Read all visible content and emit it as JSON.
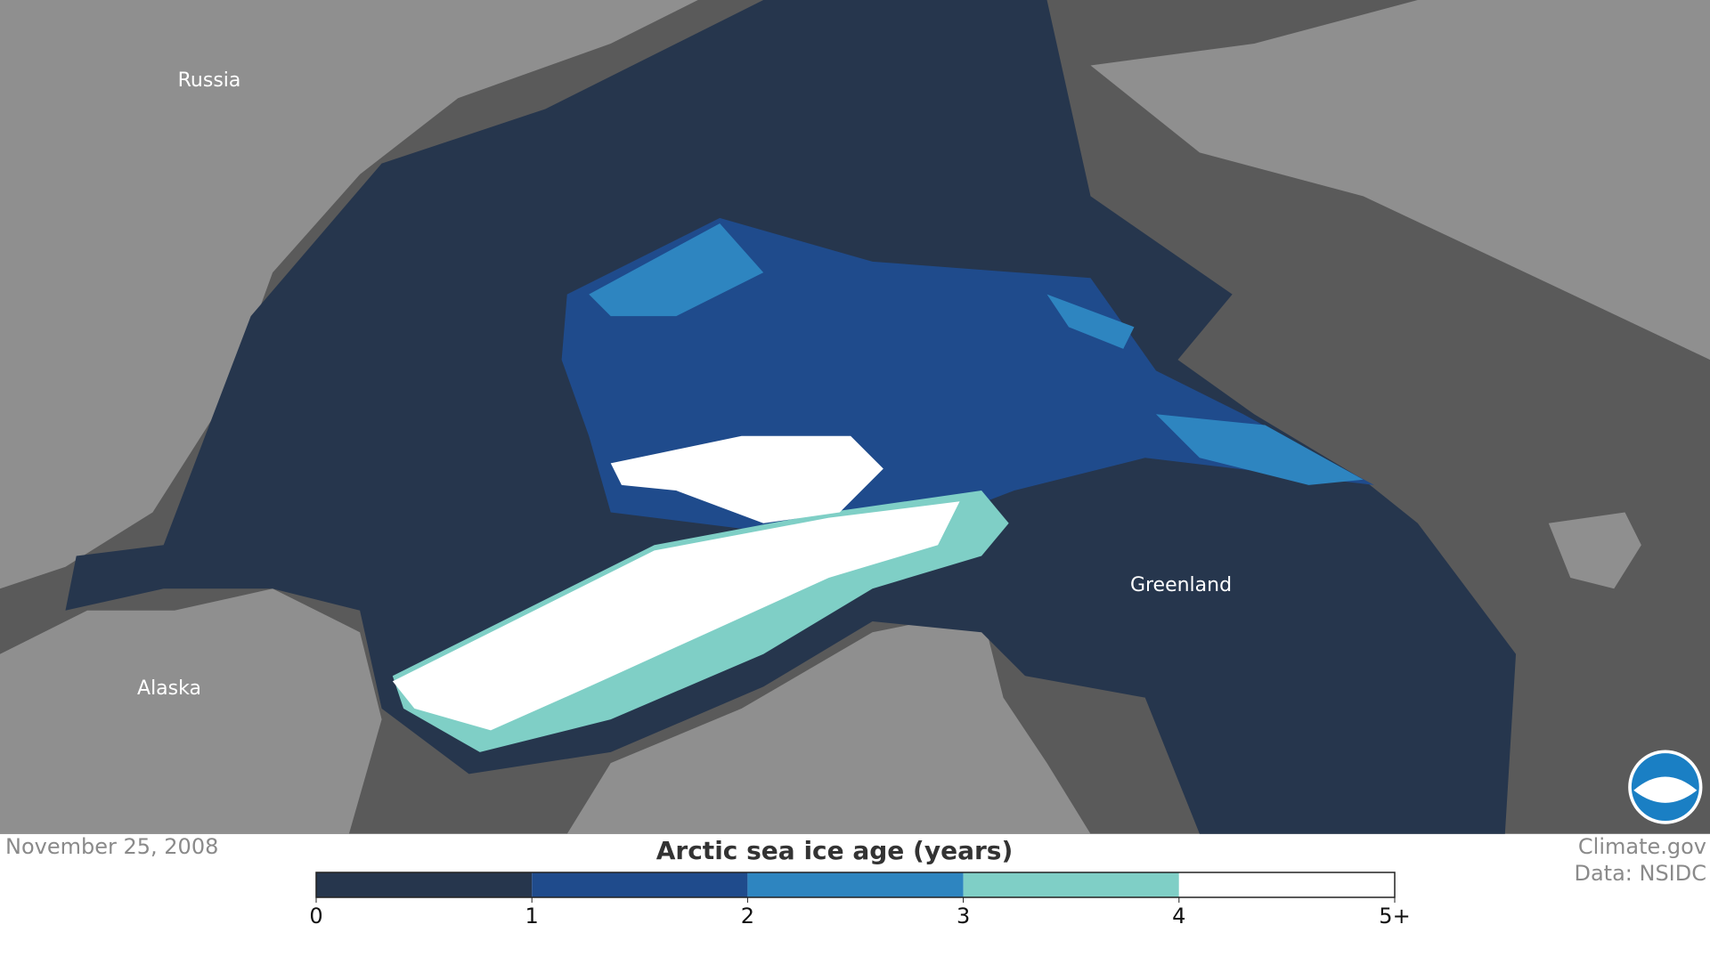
{
  "map": {
    "labels": [
      "Russia",
      "Alaska",
      "Greenland"
    ]
  },
  "date": "November 25, 2008",
  "credits": [
    "Climate.gov",
    "Data: NSIDC"
  ],
  "legend": {
    "title": "Arctic sea ice age (years)",
    "ticks": [
      "0",
      "1",
      "2",
      "3",
      "4",
      "5+"
    ],
    "colors": [
      "#26364d",
      "#1f4b8c",
      "#2e85c0",
      "#7fcfc6",
      "#ffffff"
    ]
  }
}
